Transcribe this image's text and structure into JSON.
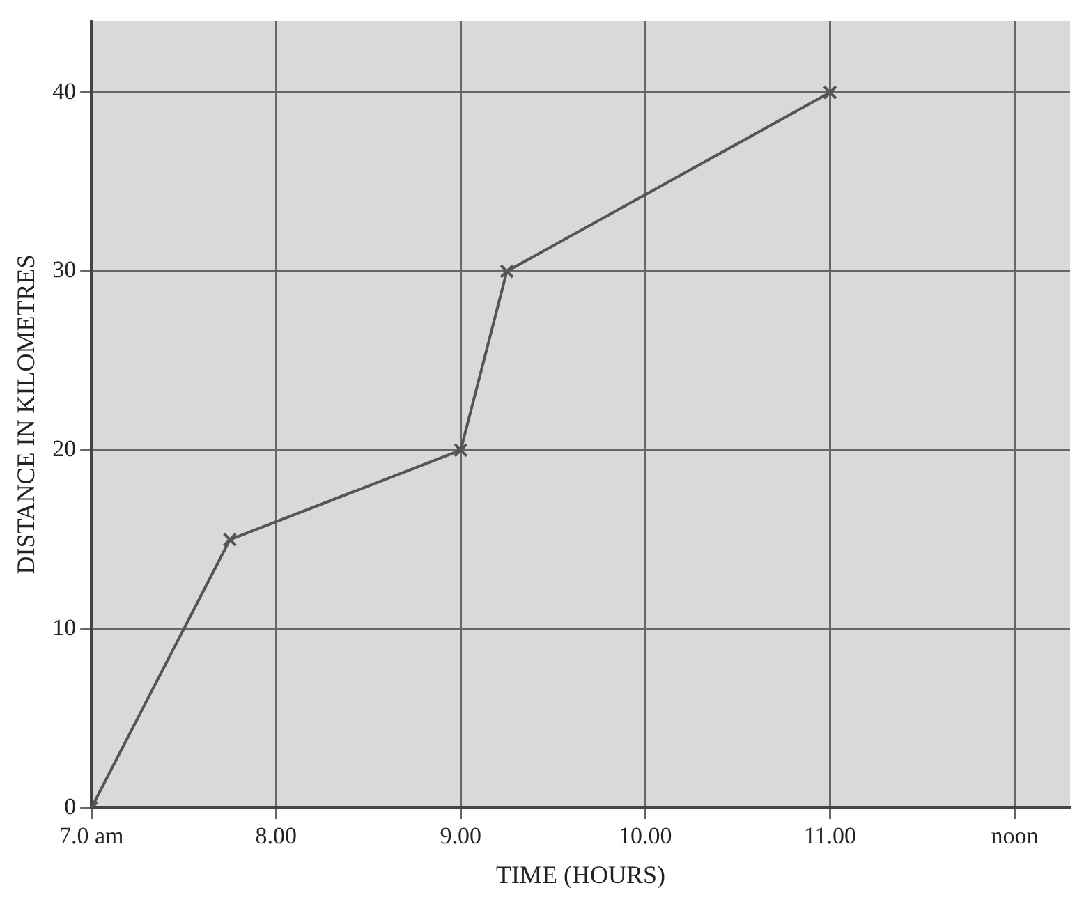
{
  "chart_data": {
    "type": "line",
    "xlabel": "TIME (HOURS)",
    "ylabel": "DISTANCE IN KILOMETRES",
    "x": [
      7.0,
      7.75,
      9.0,
      9.25,
      11.0
    ],
    "series": [
      {
        "color": "#555555",
        "values": [
          0,
          15,
          20,
          30,
          40
        ]
      }
    ],
    "xlim": [
      7,
      12.3
    ],
    "xticks": [
      {
        "value": 7,
        "label": "7.0 am"
      },
      {
        "value": 8,
        "label": "8.00"
      },
      {
        "value": 9,
        "label": "9.00"
      },
      {
        "value": 10,
        "label": "10.00"
      },
      {
        "value": 11,
        "label": "11.00"
      },
      {
        "value": 12,
        "label": "noon"
      }
    ],
    "ylim": [
      0,
      44
    ],
    "yticks": [
      0,
      10,
      20,
      30,
      40
    ],
    "grid": true,
    "legend": false,
    "marker": "cross",
    "line_style": "solid"
  }
}
